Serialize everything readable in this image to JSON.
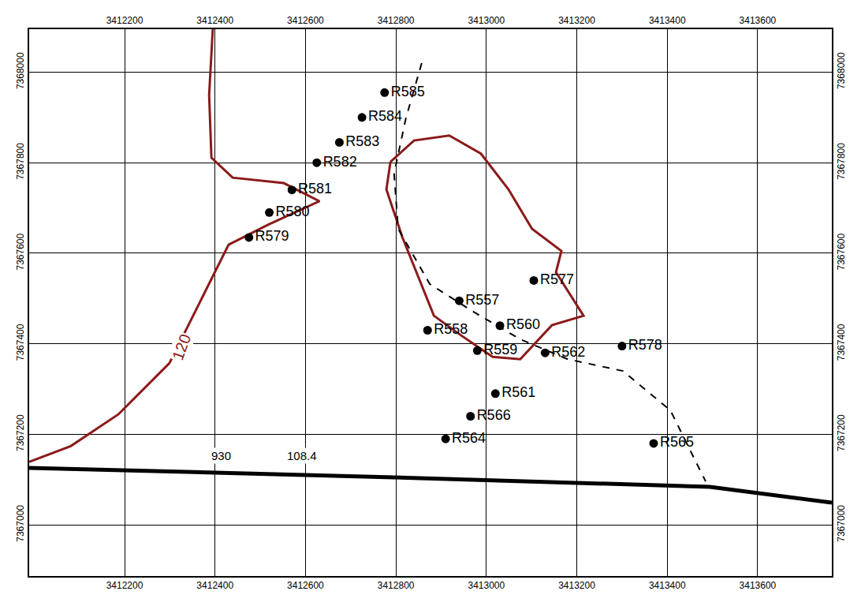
{
  "chart_data": {
    "type": "scatter",
    "xlim": [
      3411989,
      3413764
    ],
    "ylim": [
      7366887,
      7368095
    ],
    "xticks": [
      3412200,
      3412400,
      3412600,
      3412800,
      3413000,
      3413200,
      3413400,
      3413600
    ],
    "yticks": [
      7367000,
      7367200,
      7367400,
      7367600,
      7367800,
      7368000
    ],
    "grid": true,
    "points": {
      "labels": [
        "R585",
        "R584",
        "R583",
        "R582",
        "R581",
        "R580",
        "R579",
        "R577",
        "R557",
        "R558",
        "R560",
        "R559",
        "R562",
        "R578",
        "R561",
        "R566",
        "R564",
        "R565"
      ],
      "x": [
        3412775,
        3412725,
        3412675,
        3412625,
        3412570,
        3412520,
        3412475,
        3413105,
        3412940,
        3412870,
        3413030,
        3412980,
        3413130,
        3413300,
        3413020,
        3412965,
        3412910,
        3413370
      ],
      "y": [
        7367955,
        7367900,
        7367845,
        7367800,
        7367740,
        7367690,
        7367635,
        7367540,
        7367495,
        7367430,
        7367440,
        7367385,
        7367380,
        7367395,
        7367290,
        7367240,
        7367190,
        7367180
      ],
      "color": "#000000",
      "marker": "circle"
    },
    "series": [
      {
        "type": "line",
        "color": "#8b1a1a",
        "line_style": "solid",
        "x": [
          3412395,
          3412387,
          3412392,
          3412439,
          3412552,
          3412631,
          3412517,
          3412430,
          3412369,
          3412299,
          3412186,
          3412081,
          3411989
        ],
        "y": [
          7368095,
          7367950,
          7367811,
          7367767,
          7367755,
          7367715,
          7367663,
          7367619,
          7367497,
          7367357,
          7367244,
          7367174,
          7367139
        ]
      },
      {
        "type": "line",
        "color": "#8b1a1a",
        "line_style": "solid",
        "x": [
          3412788,
          3412840,
          3412918,
          3412988,
          3413049,
          3413101,
          3413166,
          3413154,
          3413215,
          3413145,
          3413075,
          3413014,
          3412945,
          3412884,
          3412814,
          3412779,
          3412788
        ],
        "y": [
          7367802,
          7367849,
          7367860,
          7367820,
          7367741,
          7367654,
          7367605,
          7367558,
          7367462,
          7367441,
          7367366,
          7367371,
          7367418,
          7367462,
          7367636,
          7367741,
          7367802
        ]
      },
      {
        "type": "line",
        "color": "#000000",
        "line_style": "dash",
        "x": [
          3412857,
          3412822,
          3412796,
          3412805,
          3412875,
          3412971,
          3413075,
          3413180,
          3413302,
          3413407,
          3413459,
          3413485
        ],
        "y": [
          7368020,
          7367898,
          7367776,
          7367654,
          7367532,
          7367471,
          7367410,
          7367366,
          7367340,
          7367253,
          7367148,
          7367096
        ]
      },
      {
        "type": "line",
        "color": "#000000",
        "line_style": "solid",
        "x": [
          3411989,
          3412796,
          3413494,
          3413764
        ],
        "y": [
          7367126,
          7367105,
          7367084,
          7367049
        ]
      }
    ],
    "annotations": [
      {
        "text": "120",
        "x": 3412326,
        "y": 7367392,
        "color": "#8b1a1a"
      },
      {
        "text": "930",
        "x": 3412413,
        "y": 7367152,
        "color": "#000000"
      },
      {
        "text": "108.4",
        "x": 3412592,
        "y": 7367152,
        "color": "#000000"
      }
    ]
  }
}
